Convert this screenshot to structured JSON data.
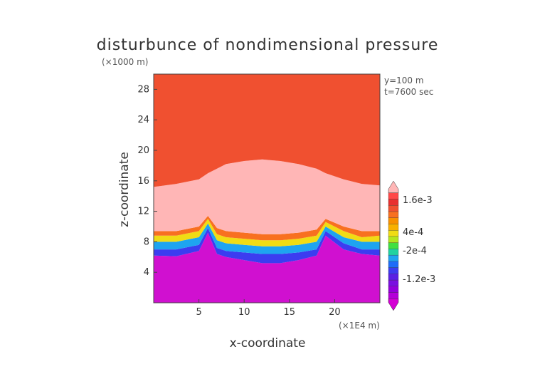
{
  "chart_data": {
    "type": "heatmap",
    "title": "disturbunce of nondimensional pressure",
    "z_unit": "(×1000 m)",
    "x_unit": "(×1E4 m)",
    "xlabel": "x-coordinate",
    "ylabel": "z-coordinate",
    "annotations": [
      "y=100 m",
      "t=7600 sec"
    ],
    "x_range": [
      0,
      25
    ],
    "z_range": [
      0,
      30
    ],
    "x_ticks": [
      5,
      10,
      15,
      20
    ],
    "z_ticks": [
      4,
      8,
      12,
      16,
      20,
      24,
      28
    ],
    "colorbar": {
      "labels": [
        "1.6e-3",
        "4e-4",
        "-2e-4",
        "-1.2e-3"
      ],
      "level_colors": [
        "#d400d4",
        "#b400d8",
        "#9400dc",
        "#7a10e0",
        "#5a20e4",
        "#3c3cf0",
        "#1e6cf8",
        "#1ea4f0",
        "#20d2a0",
        "#40e040",
        "#b4e61e",
        "#f0dc14",
        "#f8b000",
        "#f89000",
        "#f87020",
        "#f05030",
        "#e83030",
        "#ff4848",
        "#ffb6b6"
      ]
    },
    "band_boundaries_x": [
      0,
      2.5,
      5,
      6,
      7,
      8,
      10,
      12,
      14,
      16,
      18,
      19,
      21,
      23,
      25
    ],
    "band_boundaries_z": [
      [
        6.2,
        6.1,
        6.8,
        9.2,
        6.4,
        6.0,
        5.6,
        5.2,
        5.2,
        5.6,
        6.2,
        8.8,
        7.0,
        6.4,
        6.2
      ],
      [
        7.0,
        7.0,
        7.6,
        9.8,
        7.2,
        6.8,
        6.6,
        6.4,
        6.4,
        6.6,
        7.0,
        9.4,
        7.8,
        7.0,
        7.0
      ],
      [
        8.0,
        8.0,
        8.6,
        10.4,
        8.2,
        7.8,
        7.6,
        7.4,
        7.4,
        7.6,
        8.0,
        10.0,
        8.6,
        8.0,
        8.0
      ],
      [
        8.8,
        8.8,
        9.4,
        11.0,
        9.0,
        8.6,
        8.4,
        8.2,
        8.2,
        8.4,
        8.8,
        10.6,
        9.4,
        8.6,
        8.8
      ],
      [
        9.4,
        9.4,
        10.0,
        11.4,
        9.8,
        9.4,
        9.2,
        9.0,
        9.0,
        9.2,
        9.6,
        11.0,
        10.0,
        9.4,
        9.4
      ],
      [
        15.2,
        15.6,
        16.2,
        17.0,
        17.6,
        18.2,
        18.6,
        18.8,
        18.6,
        18.2,
        17.6,
        17.0,
        16.2,
        15.6,
        15.4
      ]
    ],
    "band_colors": [
      "#d010d0",
      "#3c3cf0",
      "#1ea4f0",
      "#f0dc14",
      "#f87020",
      "#ffb6b6",
      "#f05030"
    ]
  }
}
